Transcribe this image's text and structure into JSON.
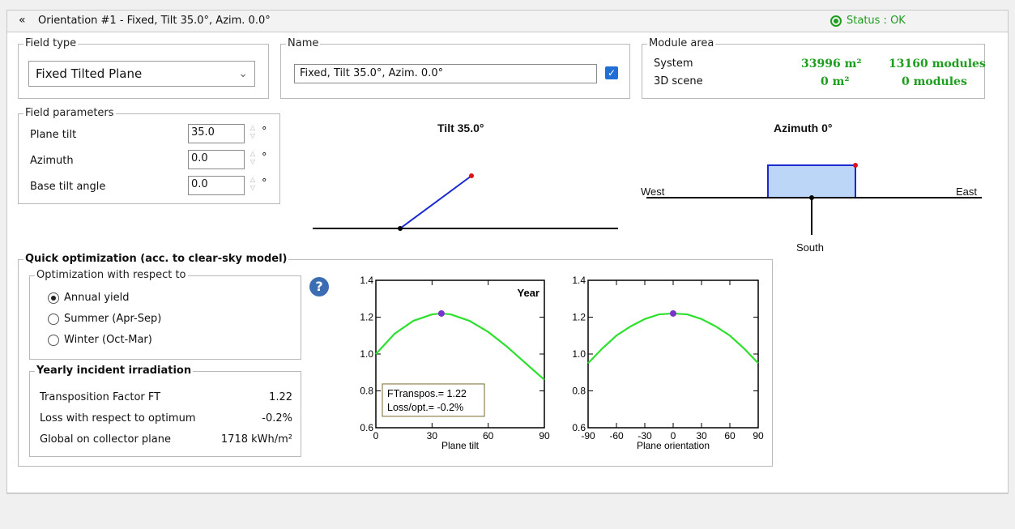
{
  "header": {
    "title": "Orientation #1 - Fixed, Tilt 35.0°, Azim. 0.0°",
    "status": "Status : OK",
    "collapse_icon": "double-chevron-down-icon"
  },
  "field_type": {
    "legend": "Field type",
    "selected": "Fixed Tilted Plane"
  },
  "name_box": {
    "legend": "Name",
    "value": "Fixed, Tilt 35.0°, Azim. 0.0°",
    "checkbox_checked": true
  },
  "module_area": {
    "legend": "Module area",
    "system_label": "System",
    "system_area": "33996 m²",
    "system_modules": "13160 modules",
    "scene_label": "3D scene",
    "scene_area": "0 m²",
    "scene_modules": "0 modules"
  },
  "field_params": {
    "legend": "Field parameters",
    "plane_tilt_label": "Plane tilt",
    "plane_tilt_value": "35.0",
    "azimuth_label": "Azimuth",
    "azimuth_value": "0.0",
    "base_tilt_label": "Base tilt angle",
    "base_tilt_value": "0.0",
    "unit": "°"
  },
  "tilt_diagram": {
    "title": "Tilt 35.0°",
    "tilt_deg": 35
  },
  "azimuth_diagram": {
    "title": "Azimuth 0°",
    "west": "West",
    "east": "East",
    "south": "South",
    "azimuth_deg": 0
  },
  "quick_opt": {
    "legend": "Quick optimization (acc. to clear-sky model)",
    "opt_legend": "Optimization with respect to",
    "options": [
      "Annual yield",
      "Summer (Apr-Sep)",
      "Winter (Oct-Mar)"
    ],
    "selected_index": 0,
    "help_icon": "question-mark-icon"
  },
  "yearly": {
    "legend": "Yearly incident irradiation",
    "rows": [
      {
        "label": "Transposition Factor FT",
        "value": "1.22"
      },
      {
        "label": "Loss with respect to optimum",
        "value": "-0.2%"
      },
      {
        "label": "Global on collector plane",
        "value": "1718 kWh/m²"
      }
    ]
  },
  "colors": {
    "curve": "#2ee02e",
    "marker": "#7a33cc",
    "accent_green": "#1e9e1e",
    "line_blue": "#1a2ad0",
    "box_fill": "#bcd6f7"
  },
  "chart_data": [
    {
      "type": "line",
      "title": "Year",
      "xlabel": "Plane tilt",
      "ylabel": "",
      "xlim": [
        0,
        90
      ],
      "ylim": [
        0.6,
        1.4
      ],
      "xticks": [
        0,
        30,
        60,
        90
      ],
      "yticks": [
        0.6,
        0.8,
        1.0,
        1.2,
        1.4
      ],
      "x": [
        0,
        10,
        20,
        30,
        35,
        40,
        50,
        60,
        70,
        80,
        90
      ],
      "y": [
        1.0,
        1.11,
        1.18,
        1.215,
        1.22,
        1.215,
        1.18,
        1.12,
        1.04,
        0.95,
        0.86
      ],
      "marker": {
        "x": 35,
        "y": 1.22
      },
      "annotation": [
        "FTranspos.= 1.22",
        "Loss/opt.= -0.2%"
      ]
    },
    {
      "type": "line",
      "title": "",
      "xlabel": "Plane orientation",
      "ylabel": "",
      "xlim": [
        -90,
        90
      ],
      "ylim": [
        0.6,
        1.4
      ],
      "xticks": [
        -90,
        -60,
        -30,
        0,
        30,
        60,
        90
      ],
      "yticks": [
        0.6,
        0.8,
        1.0,
        1.2,
        1.4
      ],
      "x": [
        -90,
        -75,
        -60,
        -45,
        -30,
        -15,
        0,
        15,
        30,
        45,
        60,
        75,
        90
      ],
      "y": [
        0.95,
        1.03,
        1.1,
        1.15,
        1.19,
        1.215,
        1.22,
        1.215,
        1.19,
        1.15,
        1.1,
        1.03,
        0.95
      ],
      "marker": {
        "x": 0,
        "y": 1.22
      }
    }
  ]
}
